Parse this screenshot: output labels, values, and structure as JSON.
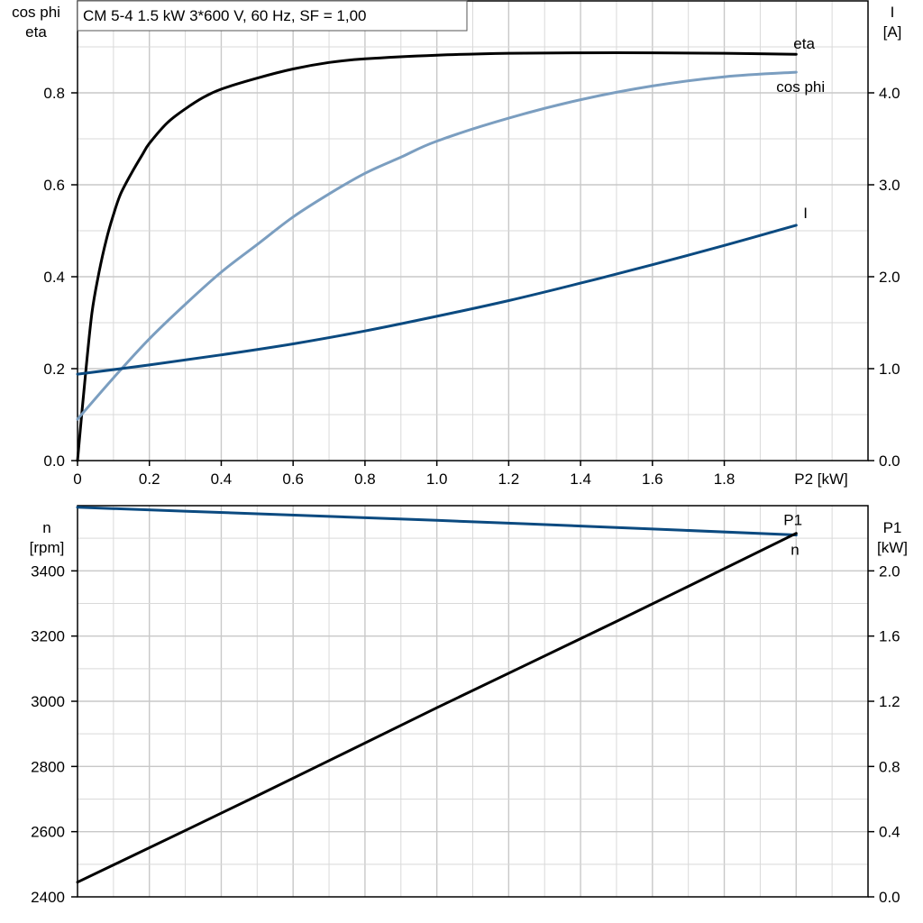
{
  "colors": {
    "eta": "#000000",
    "cos_phi": "#7b9ec0",
    "current": "#0b4a80",
    "speed": "#0b4a80",
    "p1": "#000000"
  },
  "chart_data": [
    {
      "type": "line",
      "title": "CM 5-4   1.5 kW   3*600 V, 60 Hz, SF = 1,00",
      "xlabel": "P2 [kW]",
      "ylabel_left": [
        "cos phi",
        "eta"
      ],
      "ylabel_right": [
        "I",
        "[A]"
      ],
      "xlim": [
        0,
        2.2
      ],
      "ylim_left": [
        0,
        1.0
      ],
      "ylim_right": [
        0,
        5.0
      ],
      "grid": true,
      "x_ticks": [
        {
          "value": 0,
          "label": "0"
        },
        {
          "value": 0.2,
          "label": "0.2"
        },
        {
          "value": 0.4,
          "label": "0.4"
        },
        {
          "value": 0.6,
          "label": "0.6"
        },
        {
          "value": 0.8,
          "label": "0.8"
        },
        {
          "value": 1.0,
          "label": "1.0"
        },
        {
          "value": 1.2,
          "label": "1.2"
        },
        {
          "value": 1.4,
          "label": "1.4"
        },
        {
          "value": 1.6,
          "label": "1.6"
        },
        {
          "value": 1.8,
          "label": "1.8"
        }
      ],
      "y_ticks_left": [
        {
          "value": 0,
          "label": "0.0"
        },
        {
          "value": 0.2,
          "label": "0.2"
        },
        {
          "value": 0.4,
          "label": "0.4"
        },
        {
          "value": 0.6,
          "label": "0.6"
        },
        {
          "value": 0.8,
          "label": "0.8"
        }
      ],
      "y_ticks_right": [
        {
          "value": 0,
          "label": "0.0"
        },
        {
          "value": 1,
          "label": "1.0"
        },
        {
          "value": 2,
          "label": "2.0"
        },
        {
          "value": 3,
          "label": "3.0"
        },
        {
          "value": 4,
          "label": "4.0"
        }
      ],
      "series": [
        {
          "name": "eta",
          "axis": "left",
          "color_key": "eta",
          "x": [
            0,
            0.02,
            0.04,
            0.06,
            0.08,
            0.1,
            0.12,
            0.15,
            0.18,
            0.2,
            0.25,
            0.3,
            0.35,
            0.4,
            0.5,
            0.6,
            0.7,
            0.8,
            1.0,
            1.2,
            1.4,
            1.6,
            1.8,
            2.0
          ],
          "y": [
            0.0,
            0.17,
            0.32,
            0.41,
            0.48,
            0.535,
            0.58,
            0.625,
            0.665,
            0.69,
            0.735,
            0.765,
            0.79,
            0.808,
            0.832,
            0.852,
            0.866,
            0.874,
            0.882,
            0.886,
            0.887,
            0.887,
            0.886,
            0.884
          ]
        },
        {
          "name": "cos phi",
          "axis": "left",
          "color_key": "cos_phi",
          "x": [
            0,
            0.1,
            0.2,
            0.3,
            0.4,
            0.5,
            0.6,
            0.7,
            0.8,
            0.9,
            1.0,
            1.2,
            1.4,
            1.6,
            1.8,
            2.0
          ],
          "y": [
            0.09,
            0.18,
            0.265,
            0.34,
            0.41,
            0.47,
            0.53,
            0.58,
            0.625,
            0.66,
            0.695,
            0.745,
            0.785,
            0.815,
            0.835,
            0.845
          ]
        },
        {
          "name": "I",
          "axis": "right",
          "color_key": "current",
          "x": [
            0,
            0.2,
            0.4,
            0.6,
            0.8,
            1.0,
            1.2,
            1.4,
            1.6,
            1.8,
            2.0
          ],
          "y": [
            0.94,
            1.04,
            1.15,
            1.27,
            1.41,
            1.57,
            1.74,
            1.93,
            2.13,
            2.34,
            2.56
          ]
        }
      ],
      "labels": [
        {
          "text": "eta",
          "series": "eta"
        },
        {
          "text": "cos phi",
          "series": "cos phi"
        },
        {
          "text": "I",
          "series": "I"
        }
      ]
    },
    {
      "type": "line",
      "ylabel_left": [
        "n",
        "[rpm]"
      ],
      "ylabel_right": [
        "P1",
        "[kW]"
      ],
      "xlim": [
        0,
        2.2
      ],
      "ylim_left": [
        2400,
        3600
      ],
      "ylim_right": [
        0,
        2.4
      ],
      "grid": true,
      "y_ticks_left": [
        {
          "value": 2400,
          "label": "2400"
        },
        {
          "value": 2600,
          "label": "2600"
        },
        {
          "value": 2800,
          "label": "2800"
        },
        {
          "value": 3000,
          "label": "3000"
        },
        {
          "value": 3200,
          "label": "3200"
        },
        {
          "value": 3400,
          "label": "3400"
        }
      ],
      "y_ticks_right": [
        {
          "value": 0,
          "label": "0.0"
        },
        {
          "value": 0.4,
          "label": "0.4"
        },
        {
          "value": 0.8,
          "label": "0.8"
        },
        {
          "value": 1.2,
          "label": "1.2"
        },
        {
          "value": 1.6,
          "label": "1.6"
        },
        {
          "value": 2.0,
          "label": "2.0"
        }
      ],
      "series": [
        {
          "name": "n",
          "axis": "left",
          "color_key": "speed",
          "x": [
            0,
            0.5,
            1.0,
            1.5,
            2.0
          ],
          "y": [
            3595,
            3575,
            3555,
            3533,
            3510
          ]
        },
        {
          "name": "P1",
          "axis": "right",
          "color_key": "p1",
          "x": [
            0,
            0.5,
            1.0,
            1.5,
            2.0
          ],
          "y": [
            0.09,
            0.62,
            1.16,
            1.69,
            2.23
          ]
        }
      ],
      "labels": [
        {
          "text": "P1",
          "series": "P1"
        },
        {
          "text": "n",
          "series": "n"
        }
      ]
    }
  ]
}
